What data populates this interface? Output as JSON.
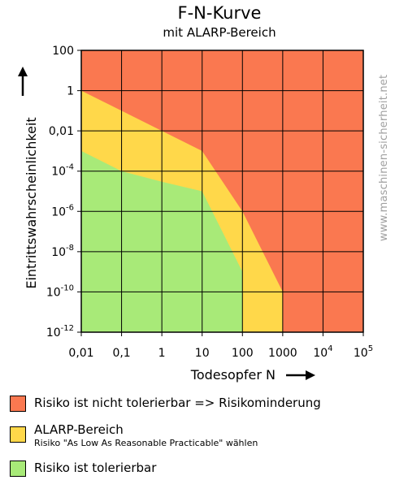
{
  "chart_data": {
    "type": "area",
    "title": "F-N-Kurve",
    "subtitle": "mit ALARP-Bereich",
    "xlabel": "Todesopfer N",
    "ylabel": "Eintrittswahrscheinlichkeit",
    "x_scale": "log",
    "y_scale": "log",
    "xlim": [
      0.01,
      100000
    ],
    "ylim": [
      1e-12,
      100
    ],
    "x_ticks": [
      {
        "label": "0,01",
        "base": "0,01",
        "exp": ""
      },
      {
        "label": "0,1",
        "base": "0,1",
        "exp": ""
      },
      {
        "label": "1",
        "base": "1",
        "exp": ""
      },
      {
        "label": "10",
        "base": "10",
        "exp": ""
      },
      {
        "label": "100",
        "base": "100",
        "exp": ""
      },
      {
        "label": "1000",
        "base": "1000",
        "exp": ""
      },
      {
        "label": "10^4",
        "base": "10",
        "exp": "4"
      },
      {
        "label": "10^5",
        "base": "10",
        "exp": "5"
      }
    ],
    "y_ticks": [
      {
        "label": "100",
        "base": "100",
        "exp": ""
      },
      {
        "label": "1",
        "base": "1",
        "exp": ""
      },
      {
        "label": "0,01",
        "base": "0,01",
        "exp": ""
      },
      {
        "label": "10^-4",
        "base": "10",
        "exp": "-4"
      },
      {
        "label": "10^-6",
        "base": "10",
        "exp": "-6"
      },
      {
        "label": "10^-8",
        "base": "10",
        "exp": "-8"
      },
      {
        "label": "10^-10",
        "base": "10",
        "exp": "-10"
      },
      {
        "label": "10^-12",
        "base": "10",
        "exp": "-12"
      }
    ],
    "grid": true,
    "regions": [
      {
        "name": "Risiko ist nicht tolerierbar",
        "color": "#fa7850",
        "boundary": "full plot area"
      },
      {
        "name": "ALARP-Bereich",
        "color": "#ffd84a",
        "upper_boundary": [
          [
            0.01,
            1
          ],
          [
            1,
            0.01
          ],
          [
            10,
            0.001
          ],
          [
            100,
            1e-06
          ],
          [
            1000,
            1e-10
          ],
          [
            1000,
            1e-12
          ]
        ]
      },
      {
        "name": "Risiko ist tolerierbar",
        "color": "#a8ea78",
        "upper_boundary": [
          [
            0.01,
            0.001
          ],
          [
            0.1,
            0.0001
          ],
          [
            1,
            3e-05
          ],
          [
            10,
            1e-05
          ],
          [
            100,
            1e-09
          ],
          [
            100,
            1e-12
          ]
        ]
      }
    ]
  },
  "legend": {
    "items": [
      {
        "label": "Risiko ist nicht tolerierbar => Risikominderung",
        "sublabel": "",
        "color": "#fa7850"
      },
      {
        "label": "ALARP-Bereich",
        "sublabel": "Risiko \"As Low As Reasonable Practicable\" wählen",
        "color": "#ffd84a"
      },
      {
        "label": "Risiko ist tolerierbar",
        "sublabel": "",
        "color": "#a8ea78"
      }
    ]
  },
  "watermark": "www.maschinen-sicherheit.net",
  "colors": {
    "grid": "#000000",
    "axis": "#000000",
    "watermark": "#a0a0a0"
  }
}
